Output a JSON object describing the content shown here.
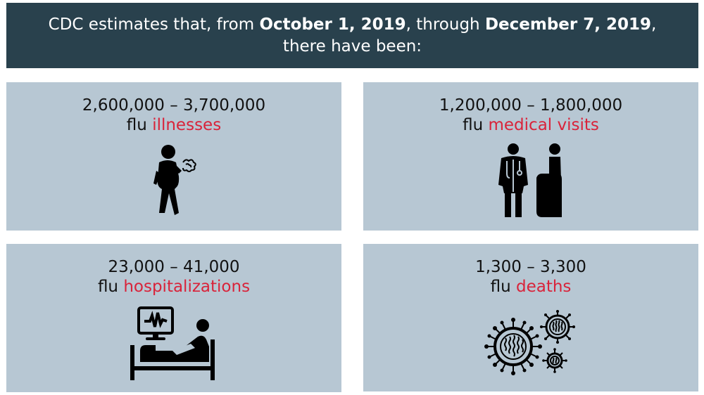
{
  "header": {
    "pre": "CDC estimates that, from ",
    "date_start": "October 1, 2019",
    "mid": ", through ",
    "date_end": "December 7, 2019",
    "post": ", there have been:"
  },
  "cards": [
    {
      "range": "2,600,000 – 3,700,000",
      "prefix": "flu ",
      "highlight": "illnesses",
      "icon": "sick-person-icon"
    },
    {
      "range": "1,200,000 – 1,800,000",
      "prefix": "flu ",
      "highlight": "medical visits",
      "icon": "doctor-patient-icon"
    },
    {
      "range": "23,000 – 41,000",
      "prefix": "flu ",
      "highlight": "hospitalizations",
      "icon": "hospital-bed-icon"
    },
    {
      "range": "1,300 – 3,300",
      "prefix": "flu ",
      "highlight": "deaths",
      "icon": "virus-icon"
    }
  ],
  "colors": {
    "header_bg": "#29414d",
    "card_bg": "#b7c7d3",
    "highlight": "#d9233a"
  }
}
